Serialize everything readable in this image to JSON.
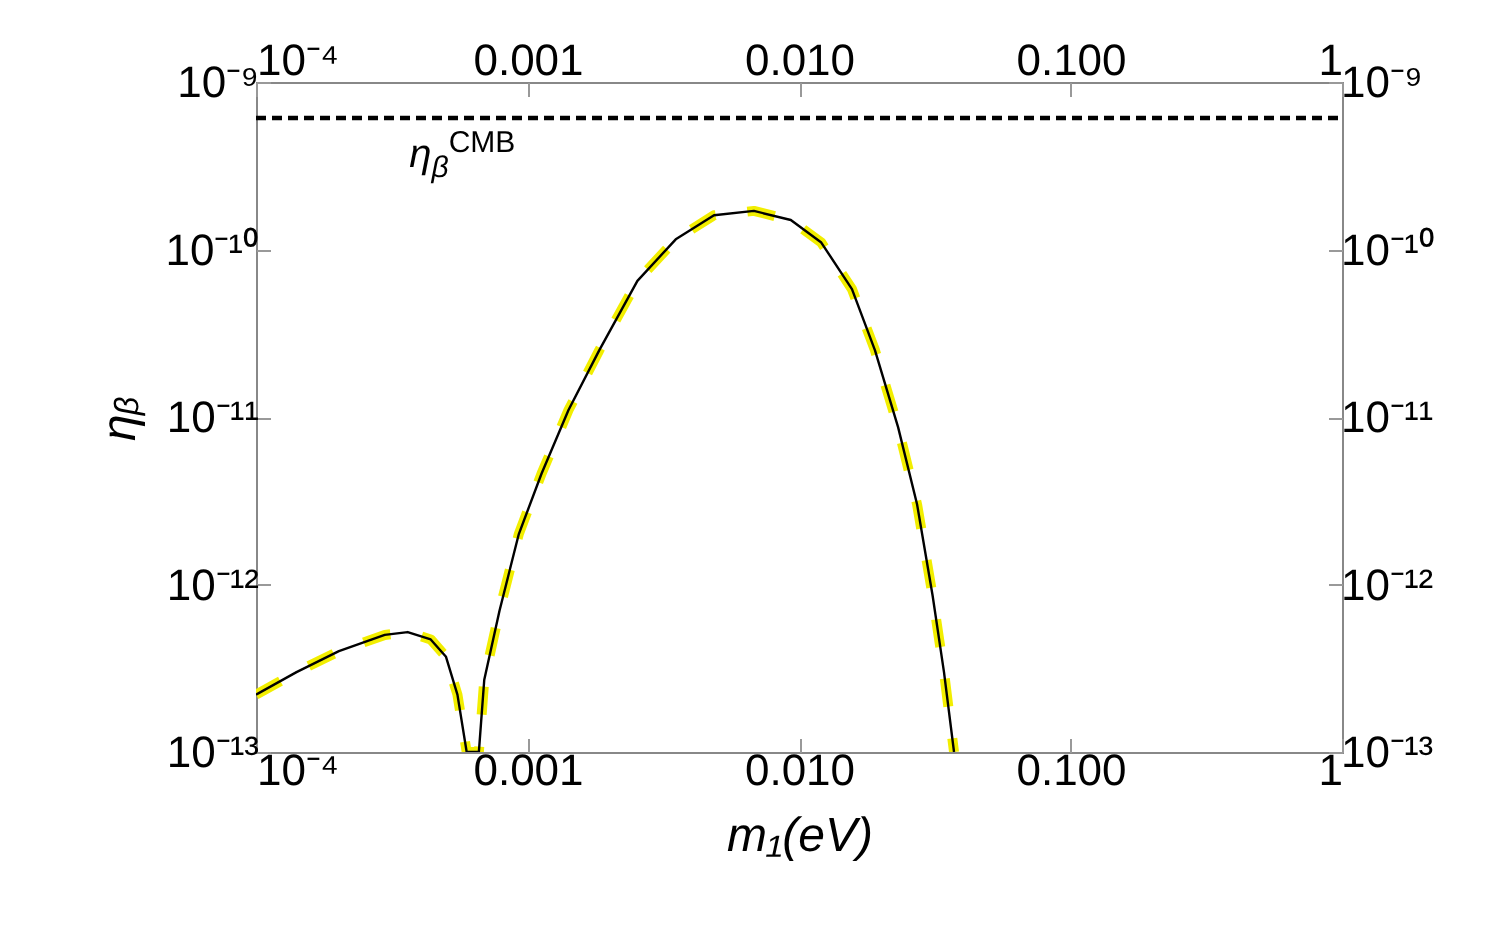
{
  "chart_data": {
    "type": "line",
    "xlabel": "m₁(eV)",
    "ylabel": "ηᵦ",
    "log": "xy",
    "grid": false,
    "marker": "none",
    "x": [
      0.0001,
      0.000141,
      0.000202,
      0.000298,
      0.000362,
      0.00044,
      0.000501,
      0.000552,
      0.000597,
      null,
      0.000662,
      0.000693,
      0.000789,
      0.000929,
      0.001127,
      0.001416,
      0.001837,
      0.00254,
      0.003516,
      0.004864,
      0.006823,
      0.00933,
      0.01208,
      0.01567,
      0.01905,
      0.02317,
      0.02723,
      0.03105,
      0.0342,
      0.03724
    ],
    "series": [
      {
        "color": "#f2ee00",
        "line_style": "dashed",
        "values": [
          2.2e-13,
          3e-13,
          4e-13,
          5e-13,
          5.2e-13,
          4.7e-13,
          3.7e-13,
          2.2e-13,
          1e-13,
          null,
          1e-13,
          2.7e-13,
          7e-13,
          2e-12,
          4.6e-12,
          1.1e-11,
          2.5e-11,
          6.5e-11,
          1.15e-10,
          1.6e-10,
          1.7e-10,
          1.5e-10,
          1.1e-10,
          5.8e-11,
          2.5e-11,
          8.7e-12,
          3e-12,
          8.6e-13,
          3e-13,
          1e-13
        ]
      },
      {
        "color": "#000000",
        "line_style": "solid",
        "values": [
          2.2e-13,
          3e-13,
          4e-13,
          5e-13,
          5.2e-13,
          4.7e-13,
          3.7e-13,
          2.2e-13,
          1e-13,
          null,
          1e-13,
          2.7e-13,
          7e-13,
          2e-12,
          4.6e-12,
          1.1e-11,
          2.5e-11,
          6.5e-11,
          1.15e-10,
          1.6e-10,
          1.7e-10,
          1.5e-10,
          1.1e-10,
          5.8e-11,
          2.5e-11,
          8.7e-12,
          3e-12,
          8.6e-13,
          3e-13,
          1e-13
        ]
      }
    ],
    "ref_lines": [
      {
        "axis": "y",
        "value": 6.1e-10,
        "label": "η$_{β}$$^{CMB}$",
        "color": "#000000",
        "line_style": "dashed"
      }
    ],
    "xlim": [
      0.0001,
      1
    ],
    "xticks": [
      {
        "value": 0.0001,
        "label": "10⁻⁴"
      },
      {
        "value": 0.001,
        "label": "0.001"
      },
      {
        "value": 0.01,
        "label": "0.010"
      },
      {
        "value": 0.1,
        "label": "0.100"
      },
      {
        "value": 1,
        "label": "1"
      }
    ],
    "ylim": [
      1e-13,
      1e-09
    ],
    "yticks": [
      {
        "value": 1e-13,
        "label": "10⁻¹³"
      },
      {
        "value": 1e-12,
        "label": "10⁻¹²"
      },
      {
        "value": 1e-11,
        "label": "10⁻¹¹"
      },
      {
        "value": 1e-10,
        "label": "10⁻¹⁰"
      },
      {
        "value": 1e-09,
        "label": "10⁻⁹"
      }
    ]
  }
}
